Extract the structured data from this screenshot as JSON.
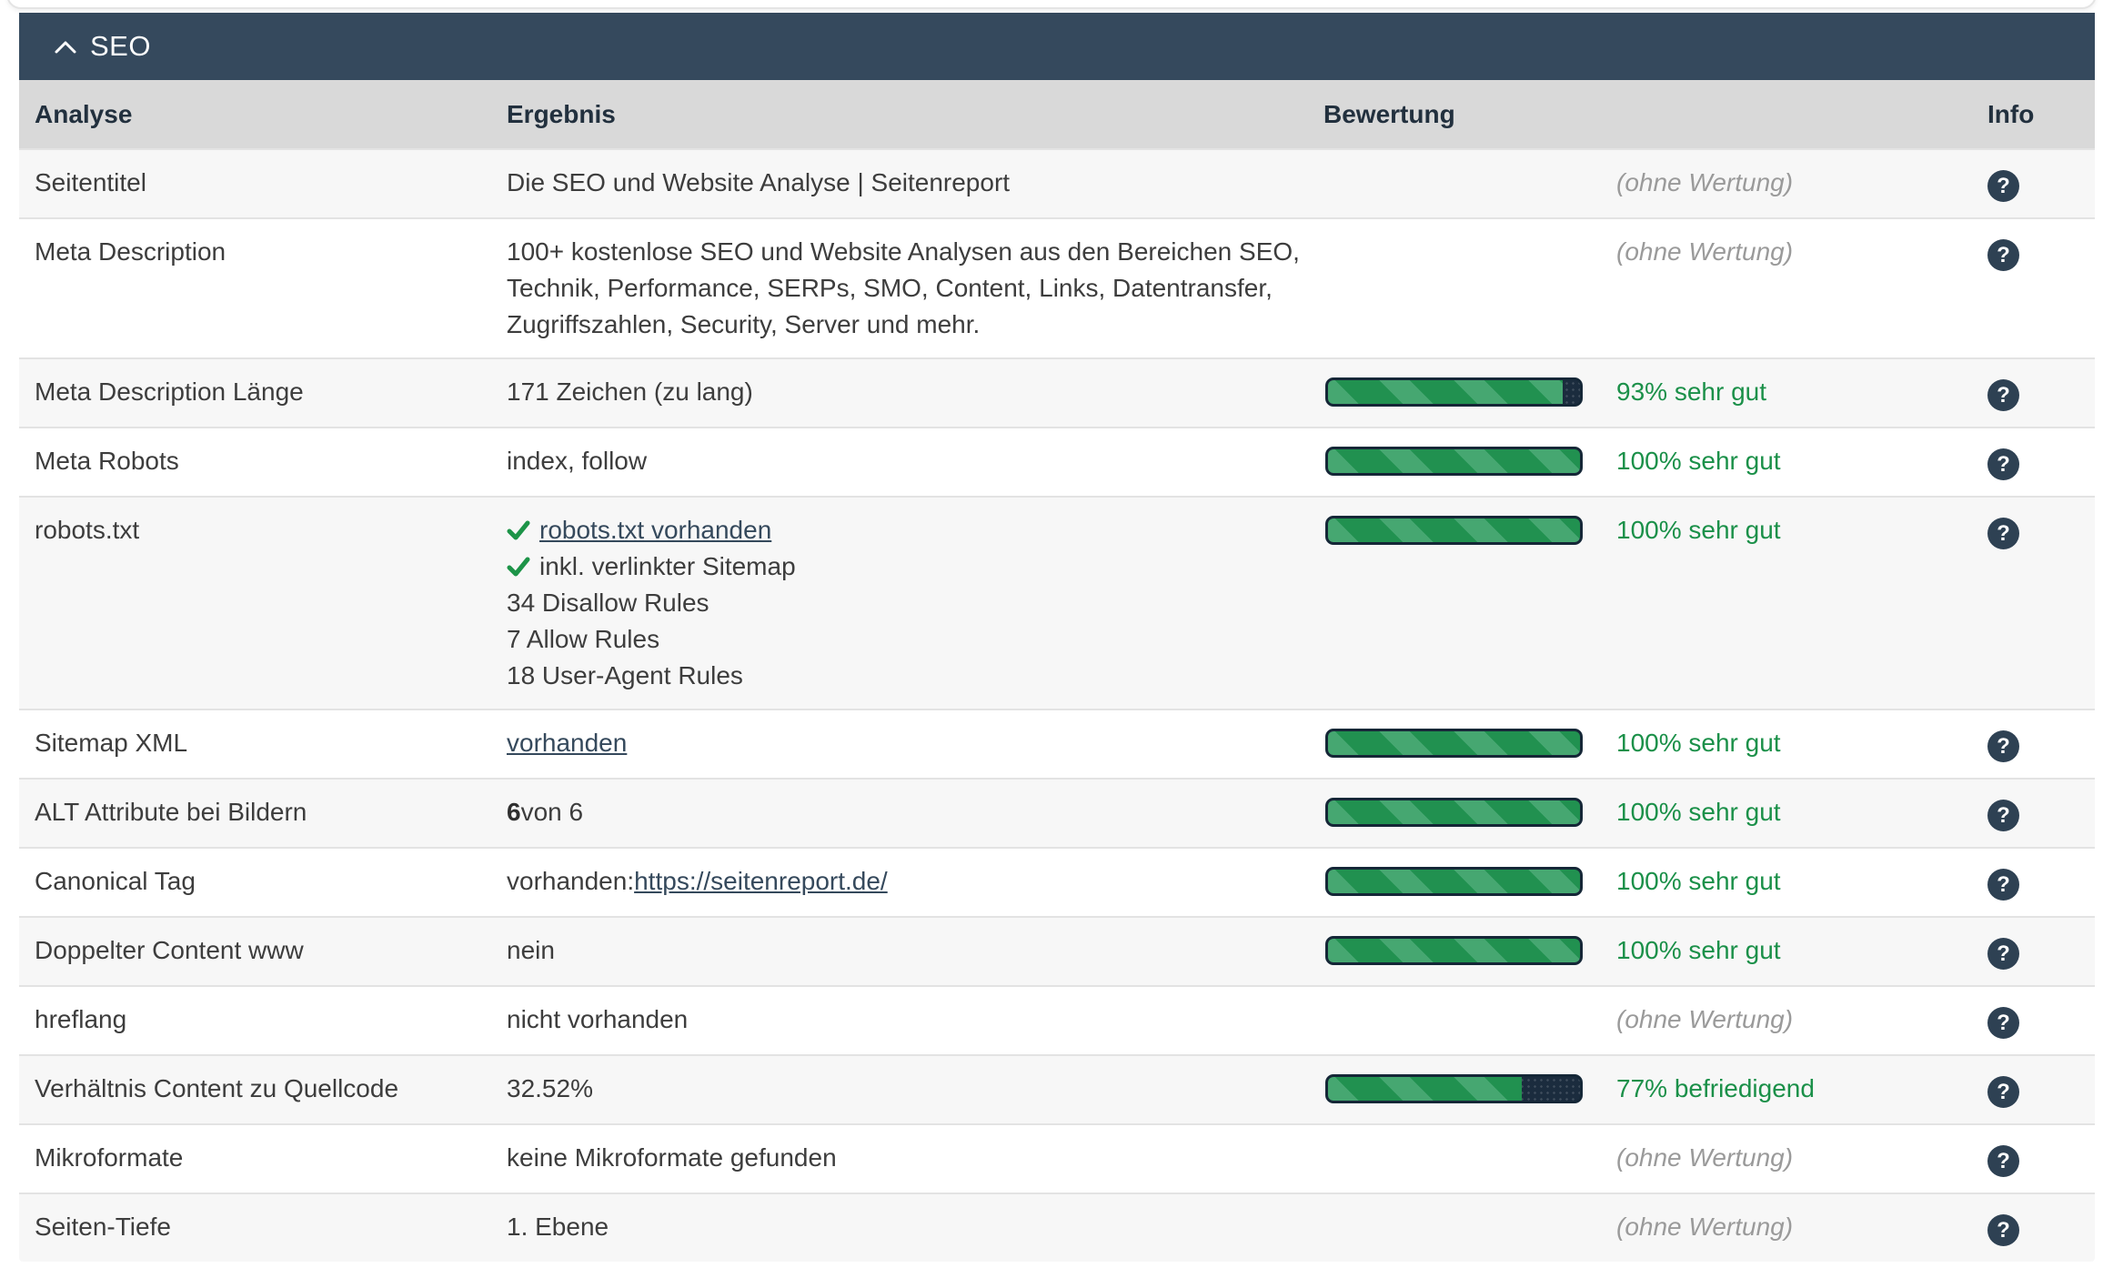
{
  "section": {
    "title": "SEO"
  },
  "columns": {
    "analyse": "Analyse",
    "ergebnis": "Ergebnis",
    "bewertung": "Bewertung",
    "info": "Info"
  },
  "colors": {
    "header_navy": "#35495d",
    "rating_green": "#1b9049",
    "bar_green_dark": "#219150",
    "bar_green_light": "#46a771",
    "bar_track_navy": "#1b2c3e",
    "no_rating_gray": "#9a9a9a"
  },
  "icons": {
    "collapse": "chevron-up-icon",
    "info": "question-mark-icon",
    "check": "check-icon"
  },
  "no_rating_text": "(ohne Wertung)",
  "rows": [
    {
      "analyse": "Seitentitel",
      "result": [
        {
          "type": "text",
          "text": "Die SEO und Website Analyse | Seitenreport"
        }
      ],
      "rating": {
        "type": "none",
        "label": "(ohne Wertung)"
      }
    },
    {
      "analyse": "Meta Description",
      "result": [
        {
          "type": "text",
          "text": "100+ kostenlose SEO und Website Analysen aus den Bereichen SEO,"
        },
        {
          "type": "text",
          "text": "Technik, Performance, SERPs, SMO, Content, Links, Datentransfer,"
        },
        {
          "type": "text",
          "text": "Zugriffszahlen, Security, Server und mehr."
        }
      ],
      "rating": {
        "type": "none",
        "label": "(ohne Wertung)"
      }
    },
    {
      "analyse": "Meta Description Länge",
      "result": [
        {
          "type": "text",
          "text": "171 Zeichen (zu lang)"
        }
      ],
      "rating": {
        "type": "bar",
        "percent": 93,
        "label": "93% sehr gut"
      }
    },
    {
      "analyse": "Meta Robots",
      "result": [
        {
          "type": "text",
          "text": "index, follow"
        }
      ],
      "rating": {
        "type": "bar",
        "percent": 100,
        "label": "100% sehr gut"
      }
    },
    {
      "analyse": "robots.txt",
      "result": [
        {
          "type": "check_link",
          "text": "robots.txt vorhanden"
        },
        {
          "type": "check",
          "text": "inkl. verlinkter Sitemap"
        },
        {
          "type": "text",
          "text": "34 Disallow Rules"
        },
        {
          "type": "text",
          "text": "7 Allow Rules"
        },
        {
          "type": "text",
          "text": "18 User-Agent Rules"
        }
      ],
      "rating": {
        "type": "bar",
        "percent": 100,
        "label": "100% sehr gut"
      }
    },
    {
      "analyse": "Sitemap XML",
      "result": [
        {
          "type": "link",
          "text": "vorhanden"
        }
      ],
      "rating": {
        "type": "bar",
        "percent": 100,
        "label": "100% sehr gut"
      }
    },
    {
      "analyse": "ALT Attribute bei Bildern",
      "result": [
        {
          "type": "bold_prefix",
          "bold": "6",
          "rest": " von 6"
        }
      ],
      "rating": {
        "type": "bar",
        "percent": 100,
        "label": "100% sehr gut"
      }
    },
    {
      "analyse": "Canonical Tag",
      "result": [
        {
          "type": "prefix_link",
          "prefix": "vorhanden: ",
          "link": "https://seitenreport.de/"
        }
      ],
      "rating": {
        "type": "bar",
        "percent": 100,
        "label": "100% sehr gut"
      }
    },
    {
      "analyse": "Doppelter Content www",
      "result": [
        {
          "type": "text",
          "text": "nein"
        }
      ],
      "rating": {
        "type": "bar",
        "percent": 100,
        "label": "100% sehr gut"
      }
    },
    {
      "analyse": "hreflang",
      "result": [
        {
          "type": "text",
          "text": "nicht vorhanden"
        }
      ],
      "rating": {
        "type": "none",
        "label": "(ohne Wertung)"
      }
    },
    {
      "analyse": "Verhältnis Content zu Quellcode",
      "result": [
        {
          "type": "text",
          "text": "32.52%"
        }
      ],
      "rating": {
        "type": "bar",
        "percent": 77,
        "label": "77% befriedigend"
      }
    },
    {
      "analyse": "Mikroformate",
      "result": [
        {
          "type": "text",
          "text": "keine Mikroformate gefunden"
        }
      ],
      "rating": {
        "type": "none",
        "label": "(ohne Wertung)"
      }
    },
    {
      "analyse": "Seiten-Tiefe",
      "result": [
        {
          "type": "text",
          "text": "1. Ebene"
        }
      ],
      "rating": {
        "type": "none",
        "label": "(ohne Wertung)"
      }
    }
  ]
}
